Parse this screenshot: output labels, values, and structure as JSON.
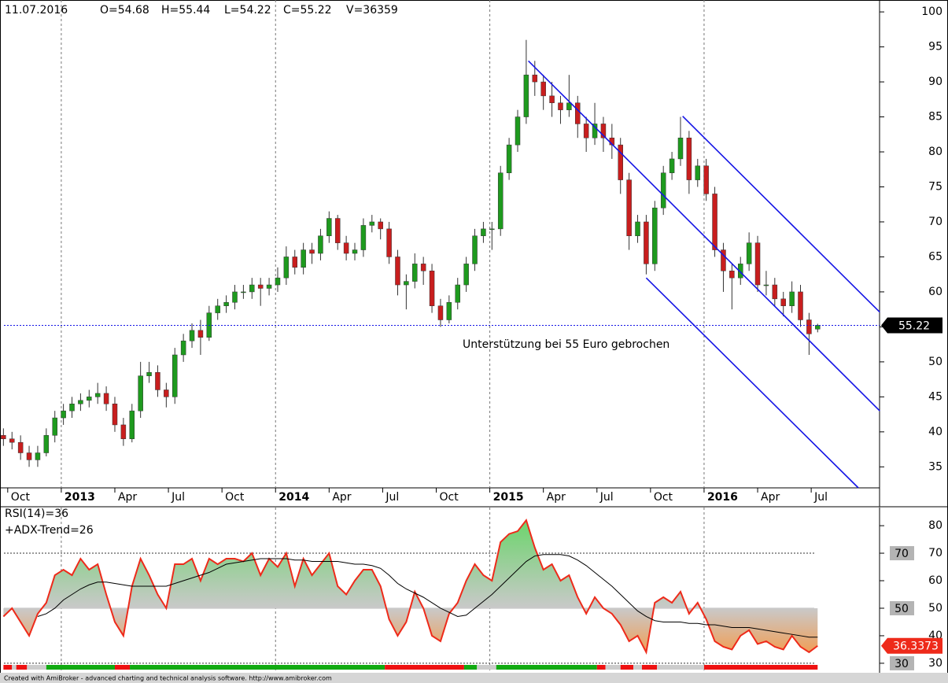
{
  "chart_data": [
    {
      "type": "candlestick",
      "info": [
        "11.07.2016",
        "O=54.68",
        "H=55.44",
        "L=54.22",
        "C=55.22",
        "V=36359"
      ],
      "x": [
        2012.73,
        2012.77,
        2012.81,
        2012.85,
        2012.89,
        2012.93,
        2012.97,
        2013.01,
        2013.05,
        2013.09,
        2013.13,
        2013.17,
        2013.21,
        2013.25,
        2013.29,
        2013.33,
        2013.37,
        2013.41,
        2013.45,
        2013.49,
        2013.53,
        2013.57,
        2013.61,
        2013.65,
        2013.69,
        2013.73,
        2013.77,
        2013.81,
        2013.85,
        2013.89,
        2013.93,
        2013.97,
        2014.01,
        2014.05,
        2014.09,
        2014.13,
        2014.17,
        2014.21,
        2014.25,
        2014.29,
        2014.33,
        2014.37,
        2014.41,
        2014.45,
        2014.49,
        2014.53,
        2014.57,
        2014.61,
        2014.65,
        2014.69,
        2014.73,
        2014.77,
        2014.81,
        2014.85,
        2014.89,
        2014.93,
        2014.97,
        2015.01,
        2015.05,
        2015.09,
        2015.13,
        2015.17,
        2015.21,
        2015.25,
        2015.29,
        2015.33,
        2015.37,
        2015.41,
        2015.45,
        2015.49,
        2015.53,
        2015.57,
        2015.61,
        2015.65,
        2015.69,
        2015.73,
        2015.77,
        2015.81,
        2015.85,
        2015.89,
        2015.93,
        2015.97,
        2016.01,
        2016.05,
        2016.09,
        2016.13,
        2016.17,
        2016.21,
        2016.25,
        2016.29,
        2016.33,
        2016.37,
        2016.41,
        2016.45,
        2016.49,
        2016.53
      ],
      "open": [
        39.5,
        39,
        38.5,
        37,
        36,
        37,
        39.5,
        42,
        43,
        44,
        44.5,
        45,
        45.5,
        44,
        41,
        39,
        43,
        48,
        48.5,
        46,
        45,
        51,
        53,
        54.5,
        53.5,
        57,
        58,
        58.5,
        60,
        60,
        61,
        60.5,
        61,
        62,
        65,
        63.5,
        66,
        65.5,
        68,
        70.5,
        67,
        65.5,
        66,
        69.5,
        70,
        69,
        65,
        61,
        61.5,
        64,
        63,
        58,
        56,
        58.5,
        61,
        64,
        68,
        69,
        69,
        77,
        81,
        85,
        91,
        90,
        88,
        87,
        86,
        87,
        84,
        82,
        84,
        82,
        81,
        76,
        68,
        70,
        64,
        72,
        77,
        79,
        82,
        76,
        78,
        74,
        66,
        63,
        62,
        64,
        67,
        61,
        61,
        59,
        58,
        60,
        56,
        54.68
      ],
      "high": [
        40.5,
        40,
        39.5,
        38,
        38,
        40.5,
        43,
        44,
        45,
        45.5,
        46,
        47,
        46.5,
        45,
        42,
        44,
        50,
        50,
        49.5,
        47,
        52,
        54,
        55.5,
        56,
        58,
        59,
        59.5,
        61,
        61,
        62,
        62,
        62,
        63.5,
        66.5,
        66,
        67,
        67,
        69,
        71.5,
        71,
        68,
        67,
        70.5,
        71,
        70.5,
        70,
        66,
        62.5,
        65.5,
        65,
        64,
        59,
        59.5,
        62,
        65,
        69,
        70,
        70,
        78,
        82,
        86,
        96,
        93,
        91,
        90,
        88,
        91,
        88,
        85,
        87,
        85,
        84,
        82,
        77,
        71,
        71,
        73,
        78,
        80,
        85,
        83,
        79,
        79,
        75,
        67,
        64,
        65,
        68.5,
        68,
        63,
        62,
        60,
        61.5,
        61,
        57,
        55.44
      ],
      "low": [
        38,
        37.5,
        36,
        35,
        35,
        36.5,
        38.5,
        41,
        42,
        43,
        43.5,
        44,
        43,
        40,
        38,
        38.5,
        42,
        47,
        45,
        43.5,
        44,
        50,
        52,
        51,
        53,
        56,
        57,
        57.5,
        59,
        59,
        58,
        59.5,
        60,
        61,
        62.5,
        62.5,
        64,
        64.5,
        67,
        66,
        64.5,
        64.5,
        65,
        68.5,
        67.5,
        64,
        59.5,
        57.5,
        60.5,
        61,
        57,
        55,
        55.5,
        57.5,
        60,
        63,
        67,
        66,
        68,
        76,
        80,
        84,
        88,
        86,
        85,
        84,
        85,
        82,
        80,
        81,
        80,
        79,
        74,
        66,
        67,
        62.5,
        63,
        71,
        76,
        78,
        74,
        75,
        73,
        65,
        60,
        57.5,
        61,
        63,
        60,
        59.5,
        58,
        56.5,
        57,
        55,
        51,
        54.22
      ],
      "close": [
        39,
        38.5,
        37,
        36,
        37,
        39.5,
        42,
        43,
        44,
        44.5,
        45,
        45.5,
        44,
        41,
        39,
        43,
        48,
        48.5,
        46,
        45,
        51,
        53,
        54.5,
        53.5,
        57,
        58,
        58.5,
        60,
        60,
        61,
        60.5,
        61,
        62,
        65,
        63.5,
        66,
        65.5,
        68,
        70.5,
        67,
        65.5,
        66,
        69.5,
        70,
        69,
        65,
        61,
        61.5,
        64,
        63,
        58,
        56,
        58.5,
        61,
        64,
        68,
        69,
        69,
        77,
        81,
        85,
        91,
        90,
        88,
        87,
        86,
        87,
        84,
        82,
        84,
        82,
        81,
        76,
        68,
        70,
        64,
        72,
        77,
        79,
        82,
        76,
        78,
        74,
        66,
        63,
        62,
        64,
        67,
        61,
        61,
        59,
        58,
        60,
        56,
        54,
        55.22
      ],
      "up_color": "#1e9a1e",
      "down_color": "#c81e1e",
      "xlim": [
        2012.714,
        2016.819
      ],
      "ylim": [
        32,
        101.7
      ],
      "xticks": [
        {
          "value": 2012.75,
          "label": "Oct"
        },
        2013,
        {
          "value": 2013.25,
          "label": "Apr"
        },
        {
          "value": 2013.5,
          "label": "Jul"
        },
        {
          "value": 2013.75,
          "label": "Oct"
        },
        2014,
        {
          "value": 2014.25,
          "label": "Apr"
        },
        {
          "value": 2014.5,
          "label": "Jul"
        },
        {
          "value": 2014.75,
          "label": "Oct"
        },
        2015,
        {
          "value": 2015.25,
          "label": "Apr"
        },
        {
          "value": 2015.5,
          "label": "Jul"
        },
        {
          "value": 2015.75,
          "label": "Oct"
        },
        2016,
        {
          "value": 2016.25,
          "label": "Apr"
        },
        {
          "value": 2016.5,
          "label": "Jul"
        }
      ],
      "yticks": [
        35,
        40,
        45,
        50,
        55,
        60,
        65,
        70,
        75,
        80,
        85,
        90,
        95,
        100
      ],
      "grid_x": [
        2013,
        2014,
        2015,
        2016
      ],
      "trendlines": [
        {
          "x": [
            2015.18,
            2016.82
          ],
          "y": [
            93,
            43
          ]
        },
        {
          "x": [
            2015.9,
            2016.82
          ],
          "y": [
            85.1,
            57.1
          ]
        },
        {
          "x": [
            2015.73,
            2016.72
          ],
          "y": [
            62,
            32
          ]
        }
      ],
      "trendline_color": "#1414e6",
      "annotation": "Unterstützung bei 55 Euro gebrochen"
    },
    {
      "type": "line",
      "x": [
        2012.73,
        2012.77,
        2012.81,
        2012.85,
        2012.89,
        2012.93,
        2012.97,
        2013.01,
        2013.05,
        2013.09,
        2013.13,
        2013.17,
        2013.21,
        2013.25,
        2013.29,
        2013.33,
        2013.37,
        2013.41,
        2013.45,
        2013.49,
        2013.53,
        2013.57,
        2013.61,
        2013.65,
        2013.69,
        2013.73,
        2013.77,
        2013.81,
        2013.85,
        2013.89,
        2013.93,
        2013.97,
        2014.01,
        2014.05,
        2014.09,
        2014.13,
        2014.17,
        2014.21,
        2014.25,
        2014.29,
        2014.33,
        2014.37,
        2014.41,
        2014.45,
        2014.49,
        2014.53,
        2014.57,
        2014.61,
        2014.65,
        2014.69,
        2014.73,
        2014.77,
        2014.81,
        2014.85,
        2014.89,
        2014.93,
        2014.97,
        2015.01,
        2015.05,
        2015.09,
        2015.13,
        2015.17,
        2015.21,
        2015.25,
        2015.29,
        2015.33,
        2015.37,
        2015.41,
        2015.45,
        2015.49,
        2015.53,
        2015.57,
        2015.61,
        2015.65,
        2015.69,
        2015.73,
        2015.77,
        2015.81,
        2015.85,
        2015.89,
        2015.93,
        2015.97,
        2016.01,
        2016.05,
        2016.09,
        2016.13,
        2016.17,
        2016.21,
        2016.25,
        2016.29,
        2016.33,
        2016.37,
        2016.41,
        2016.45,
        2016.49,
        2016.53
      ],
      "series": [
        {
          "name": "RSI(14)=36",
          "color": "#ee2a1a",
          "values": [
            47,
            50,
            45,
            40,
            48,
            52,
            62,
            64,
            62,
            68,
            64,
            66,
            55,
            45,
            40,
            58,
            68,
            62,
            55,
            50,
            66,
            66,
            68,
            60,
            68,
            66,
            68,
            68,
            67,
            70,
            62,
            68,
            65,
            70,
            58,
            68,
            62,
            66,
            70,
            58,
            55,
            60,
            64,
            64,
            58,
            46,
            40,
            45,
            56,
            50,
            40,
            38,
            48,
            52,
            60,
            66,
            62,
            60,
            74,
            77,
            78,
            82,
            72,
            64,
            66,
            60,
            62,
            54,
            48,
            54,
            50,
            48,
            44,
            38,
            40,
            34,
            52,
            54,
            52,
            56,
            48,
            52,
            46,
            38,
            36,
            35,
            40,
            42,
            37,
            38,
            36,
            35,
            40,
            36,
            34,
            36.3373
          ]
        },
        {
          "color": "#000000",
          "values": [
            null,
            null,
            null,
            null,
            47,
            48,
            50,
            53,
            55,
            57,
            58.5,
            59.5,
            59.5,
            59,
            58.5,
            58,
            58,
            58,
            58,
            58,
            59,
            60,
            61,
            62,
            63,
            64.5,
            66,
            66.5,
            67,
            67.5,
            68,
            68,
            68,
            68,
            67.5,
            67.5,
            67,
            67,
            67,
            67,
            66.5,
            66,
            66,
            65.5,
            64.5,
            62,
            59,
            57,
            55.5,
            54,
            52,
            50,
            48.5,
            47,
            47.5,
            50,
            52.5,
            55,
            58,
            61,
            64,
            67,
            69,
            69.5,
            69.5,
            69.5,
            69,
            67.5,
            65.5,
            63,
            60.5,
            58,
            55,
            52,
            49,
            47,
            45.5,
            45,
            45,
            45,
            44.5,
            44.5,
            44,
            44,
            43.5,
            43,
            43,
            43,
            42.5,
            42,
            41.5,
            41,
            40.5,
            40,
            39.5,
            39.5
          ]
        }
      ],
      "fill_above_color": "#6fd46f",
      "fill_below_color": "#f59a4a",
      "levels": [
        70,
        50,
        30
      ],
      "xlim": [
        2012.714,
        2016.819
      ],
      "ylim": [
        27.4,
        86.6
      ],
      "yticks": [
        30,
        40,
        50,
        60,
        70,
        80
      ],
      "grid_x": [
        2013,
        2014,
        2015,
        2016
      ],
      "trend_bar": {
        "name": "+ADX-Trend=26",
        "edges": [
          2012.73,
          2012.77,
          2012.79,
          2012.84,
          2012.93,
          2013.25,
          2013.32,
          2014.51,
          2014.88,
          2014.94,
          2015.03,
          2015.5,
          2015.54,
          2015.61,
          2015.67,
          2015.71,
          2015.78,
          2016.0,
          2016.53
        ],
        "colors": [
          "#ee1111",
          "#cccccc",
          "#ee1111",
          "#cccccc",
          "#11aa11",
          "#ee1111",
          "#11aa11",
          "#ee1111",
          "#11aa11",
          "#cccccc",
          "#11aa11",
          "#ee1111",
          "#cccccc",
          "#ee1111",
          "#cccccc",
          "#ee1111",
          "#cccccc",
          "#ee1111"
        ]
      }
    }
  ],
  "footer": "Created with AmiBroker - advanced charting and technical analysis software. http://www.amibroker.com"
}
